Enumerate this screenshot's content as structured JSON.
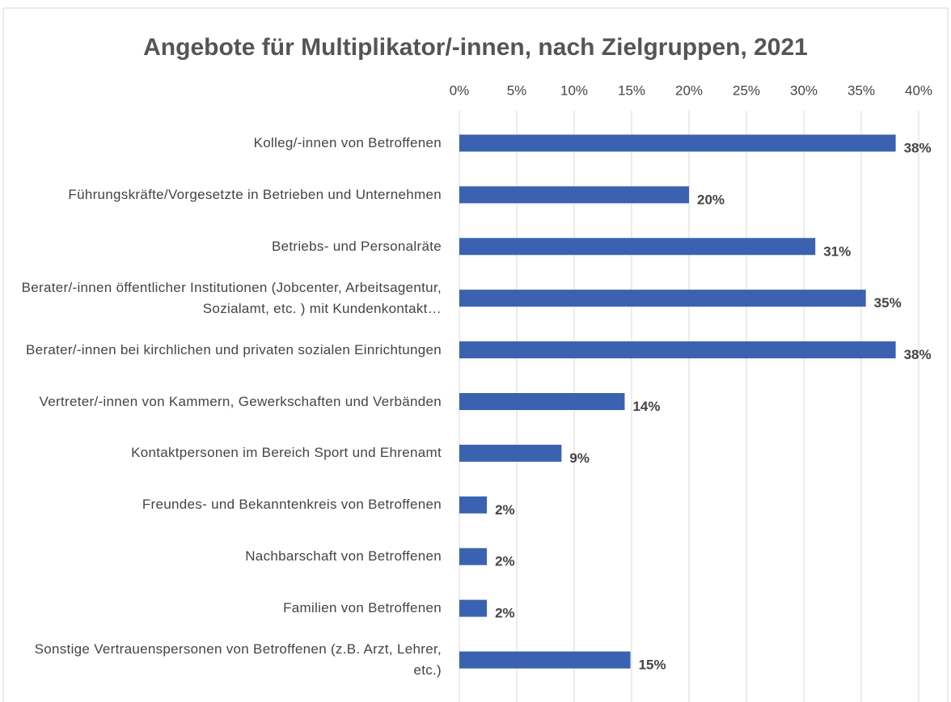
{
  "chart_data": {
    "type": "bar",
    "orientation": "horizontal",
    "title": "Angebote für Multiplikator/-innen, nach Zielgruppen, 2021",
    "categories": [
      "Kolleg/-innen von Betroffenen",
      "Führungskräfte/Vorgesetzte in Betrieben und Unternehmen",
      "Betriebs- und Personalräte",
      "Berater/-innen öffentlicher Institutionen (Jobcenter, Arbeitsagentur, Sozialamt, etc. ) mit Kundenkontakt…",
      "Berater/-innen bei kirchlichen und privaten sozialen Einrichtungen",
      "Vertreter/-innen von Kammern, Gewerkschaften und Verbänden",
      "Kontaktpersonen im Bereich Sport und Ehrenamt",
      "Freundes- und Bekanntenkreis von Betroffenen",
      "Nachbarschaft von Betroffenen",
      "Familien von Betroffenen",
      "Sonstige Vertrauenspersonen von Betroffenen (z.B. Arzt, Lehrer, etc.)"
    ],
    "values": [
      38,
      20,
      31,
      35.4,
      38,
      14.4,
      8.9,
      2.4,
      2.4,
      2.4,
      14.9
    ],
    "value_labels": [
      "38%",
      "20%",
      "31%",
      "35%",
      "38%",
      "14%",
      "9%",
      "2%",
      "2%",
      "2%",
      "15%"
    ],
    "color": "#3a62b0",
    "xlim": [
      0,
      40
    ],
    "xticks": [
      {
        "value": 0,
        "label": "0%"
      },
      {
        "value": 5,
        "label": "5%"
      },
      {
        "value": 10,
        "label": "10%"
      },
      {
        "value": 15,
        "label": "15%"
      },
      {
        "value": 20,
        "label": "20%"
      },
      {
        "value": 25,
        "label": "25%"
      },
      {
        "value": 30,
        "label": "30%"
      },
      {
        "value": 35,
        "label": "35%"
      },
      {
        "value": 40,
        "label": "40%"
      }
    ],
    "grid": true
  }
}
